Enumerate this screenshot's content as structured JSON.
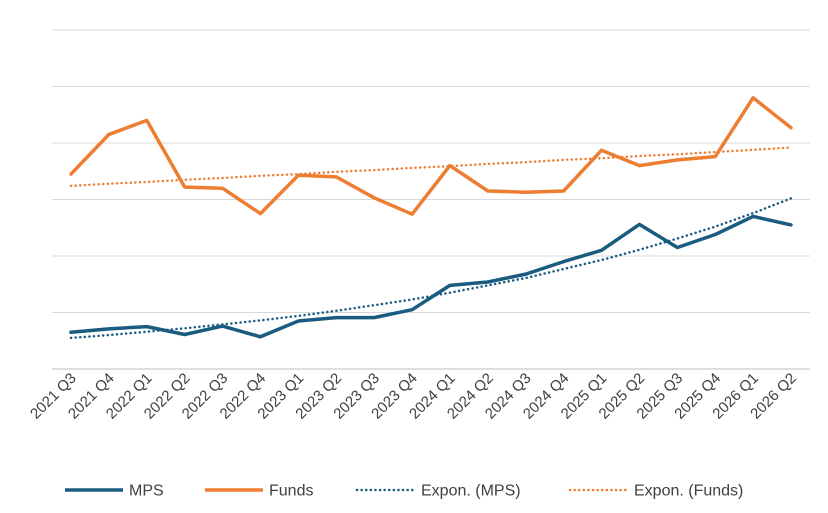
{
  "chart_data": {
    "type": "line",
    "categories": [
      "2021 Q3",
      "2021 Q4",
      "2022 Q1",
      "2022 Q2",
      "2022 Q3",
      "2022 Q4",
      "2023 Q1",
      "2023 Q2",
      "2023 Q3",
      "2023 Q4",
      "2024 Q1",
      "2024 Q2",
      "2024 Q3",
      "2024 Q4",
      "2025 Q1",
      "2025 Q2",
      "2025 Q3",
      "2025 Q4",
      "2026 Q1",
      "2026 Q2"
    ],
    "ylim": [
      0,
      6
    ],
    "grid": true,
    "legend_position": "bottom",
    "series": [
      {
        "name": "MPS",
        "style": "solid",
        "color": "#1a5b80",
        "values": [
          0.65,
          0.71,
          0.75,
          0.61,
          0.76,
          0.57,
          0.85,
          0.91,
          0.91,
          1.05,
          1.48,
          1.54,
          1.68,
          1.9,
          2.1,
          2.56,
          2.15,
          2.38,
          2.7,
          2.55
        ]
      },
      {
        "name": "Funds",
        "style": "solid",
        "color": "#ed7d31",
        "values": [
          3.45,
          4.15,
          4.4,
          3.22,
          3.2,
          2.75,
          3.43,
          3.4,
          3.03,
          2.74,
          3.6,
          3.15,
          3.13,
          3.15,
          3.87,
          3.6,
          3.7,
          3.76,
          4.8,
          4.27
        ]
      },
      {
        "name": "Expon. (MPS)",
        "style": "dotted",
        "color": "#1a5b80",
        "values": [
          0.55,
          0.6,
          0.66,
          0.72,
          0.79,
          0.86,
          0.94,
          1.03,
          1.13,
          1.23,
          1.35,
          1.48,
          1.61,
          1.77,
          1.93,
          2.11,
          2.31,
          2.52,
          2.76,
          3.02
        ]
      },
      {
        "name": "Expon. (Funds)",
        "style": "dotted",
        "color": "#ed7d31",
        "values": [
          3.24,
          3.28,
          3.31,
          3.35,
          3.38,
          3.42,
          3.45,
          3.49,
          3.52,
          3.56,
          3.59,
          3.63,
          3.66,
          3.7,
          3.73,
          3.77,
          3.8,
          3.84,
          3.88,
          3.92
        ]
      }
    ]
  }
}
